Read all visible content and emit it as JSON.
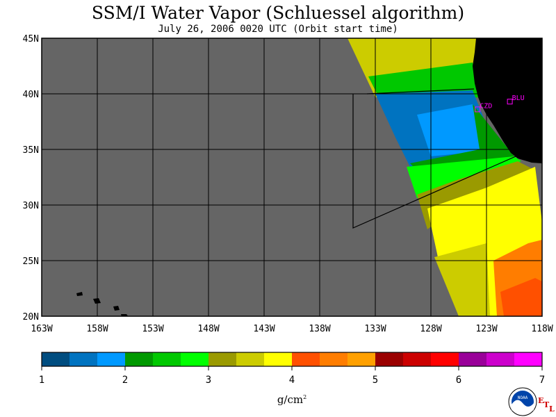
{
  "title": "SSM/I Water Vapor (Schluessel algorithm)",
  "subtitle": "July 26, 2006  0020 UTC  (Orbit start time)",
  "map": {
    "lon_range": [
      -163,
      -118
    ],
    "lat_range": [
      20,
      45
    ],
    "lon_ticks": [
      {
        "value": -163,
        "label": "163W"
      },
      {
        "value": -158,
        "label": "158W"
      },
      {
        "value": -153,
        "label": "153W"
      },
      {
        "value": -148,
        "label": "148W"
      },
      {
        "value": -143,
        "label": "143W"
      },
      {
        "value": -138,
        "label": "138W"
      },
      {
        "value": -133,
        "label": "133W"
      },
      {
        "value": -128,
        "label": "128W"
      },
      {
        "value": -123,
        "label": "123W"
      },
      {
        "value": -118,
        "label": "118W"
      }
    ],
    "lat_ticks": [
      {
        "value": 45,
        "label": "45N"
      },
      {
        "value": 40,
        "label": "40N"
      },
      {
        "value": 35,
        "label": "35N"
      },
      {
        "value": 30,
        "label": "30N"
      },
      {
        "value": 25,
        "label": "25N"
      },
      {
        "value": 20,
        "label": "20N"
      }
    ],
    "stations": [
      {
        "label": "CZD",
        "lon": -123.8,
        "lat": 38.6,
        "color": "#ff00ff"
      },
      {
        "label": "BLU",
        "lon": -120.9,
        "lat": 39.3,
        "color": "#ff00ff"
      }
    ],
    "colors": {
      "no_data": "#656565",
      "land": "#000000"
    }
  },
  "colorbar": {
    "tick_labels": [
      "1",
      "2",
      "3",
      "4",
      "5",
      "6",
      "7"
    ],
    "colors": [
      "#004d80",
      "#0073c0",
      "#0099ff",
      "#009900",
      "#00c800",
      "#00ff00",
      "#9a9a00",
      "#cccc00",
      "#ffff00",
      "#ff5000",
      "#ff7d00",
      "#ffa000",
      "#9a0000",
      "#cc0000",
      "#ff0000",
      "#990099",
      "#cc00cc",
      "#ff00ff"
    ],
    "units": "g/cm",
    "units_sup": "2"
  },
  "logo": {
    "noaa_text": "NOAA",
    "etl_letters": [
      "E",
      "T",
      "L"
    ]
  }
}
